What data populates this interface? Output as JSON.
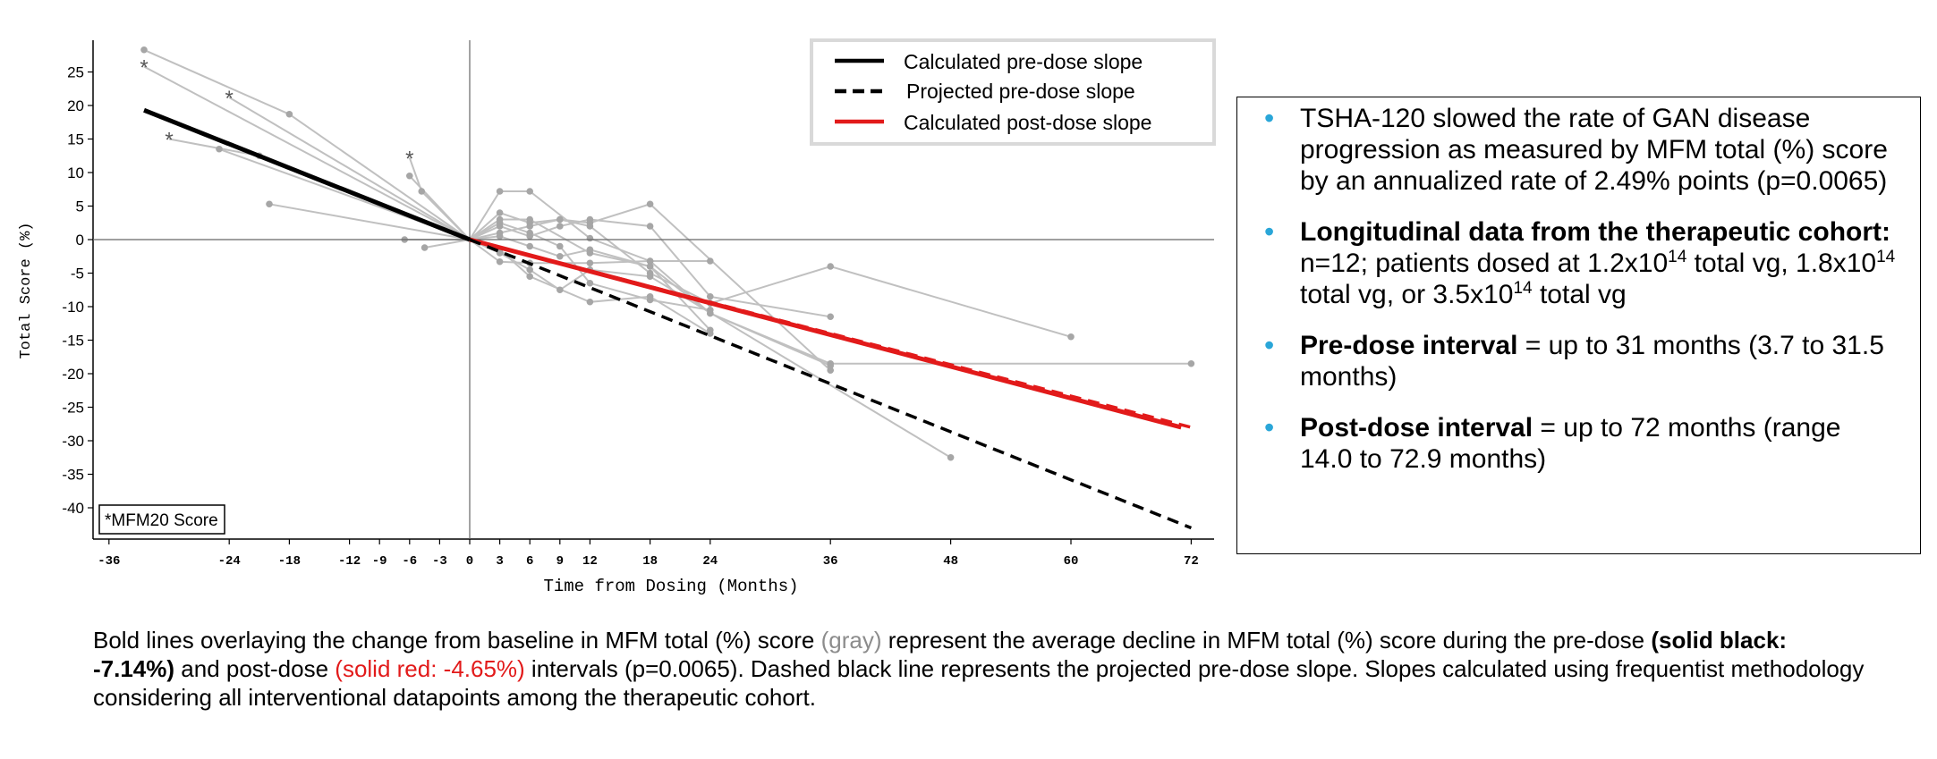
{
  "chart_data": {
    "type": "line",
    "xlabel": "Time from Dosing (Months)",
    "ylabel": "Total Score (%)",
    "xlim": [
      -36,
      73
    ],
    "ylim": [
      -45,
      30
    ],
    "x_ticks": [
      -36,
      -24,
      -18,
      -12,
      -9,
      -6,
      -3,
      0,
      3,
      6,
      9,
      12,
      18,
      24,
      36,
      48,
      60,
      72
    ],
    "y_ticks": [
      25,
      20,
      15,
      10,
      5,
      0,
      -5,
      -10,
      -15,
      -20,
      -25,
      -30,
      -35,
      -40
    ],
    "annotation": "*MFM20 Score",
    "legend_position": "top-right",
    "legend": [
      {
        "label": "Calculated pre-dose slope",
        "color": "#000000",
        "style": "solid"
      },
      {
        "label": "Projected pre-dose slope",
        "color": "#000000",
        "style": "dashed"
      },
      {
        "label": "Calculated post-dose slope",
        "color": "#e21a1a",
        "style": "solid"
      }
    ],
    "bold_lines": [
      {
        "name": "Calculated pre-dose slope",
        "color": "#000000",
        "style": "solid",
        "points": [
          [
            -32.5,
            19.3
          ],
          [
            0,
            0
          ]
        ]
      },
      {
        "name": "Projected pre-dose slope",
        "color": "#000000",
        "style": "dashed",
        "points": [
          [
            0,
            0
          ],
          [
            72,
            -43
          ]
        ]
      },
      {
        "name": "Calculated post-dose slope",
        "color": "#e21a1a",
        "style": "solid",
        "points": [
          [
            0,
            0
          ],
          [
            71,
            -28
          ]
        ]
      },
      {
        "name": "Projected post-dose slope",
        "color": "#e21a1a",
        "style": "dashed",
        "points": [
          [
            0,
            0
          ],
          [
            72,
            -28
          ]
        ]
      }
    ],
    "series": [
      {
        "points": [
          [
            -32.5,
            28.3
          ],
          [
            -18,
            18.7
          ],
          [
            0,
            0
          ],
          [
            3,
            7.2
          ],
          [
            6,
            7.2
          ],
          [
            12,
            0.2
          ],
          [
            18,
            -3.2
          ],
          [
            24,
            -3.2
          ]
        ],
        "marker": "dot"
      },
      {
        "points": [
          [
            -32.5,
            25.8
          ],
          [
            0,
            0
          ],
          [
            3,
            4
          ],
          [
            6,
            2.5
          ],
          [
            9,
            3
          ],
          [
            12,
            2
          ],
          [
            18,
            -5
          ],
          [
            24,
            -9.5
          ],
          [
            36,
            -4
          ],
          [
            60,
            -14.5
          ]
        ],
        "marker": "star"
      },
      {
        "points": [
          [
            -24,
            21.2
          ],
          [
            0,
            0
          ],
          [
            3,
            3
          ],
          [
            6,
            3
          ],
          [
            12,
            -2
          ],
          [
            18,
            -4
          ],
          [
            24,
            -11
          ],
          [
            36,
            -18.5
          ],
          [
            72,
            -18.5
          ]
        ],
        "marker": "star"
      },
      {
        "points": [
          [
            -30,
            15
          ],
          [
            -21,
            12.5
          ],
          [
            0,
            0
          ],
          [
            3,
            2
          ],
          [
            6,
            0.5
          ],
          [
            9,
            2
          ],
          [
            12,
            3
          ],
          [
            18,
            2
          ],
          [
            24,
            -8.5
          ],
          [
            36,
            -11.5
          ]
        ],
        "marker": "star"
      },
      {
        "points": [
          [
            -25,
            13.5
          ],
          [
            0,
            0
          ],
          [
            3,
            1
          ],
          [
            6,
            2
          ],
          [
            9,
            3
          ],
          [
            12,
            2.5
          ],
          [
            18,
            5.3
          ],
          [
            36,
            -19.5
          ]
        ],
        "marker": "dot"
      },
      {
        "points": [
          [
            -20,
            5.3
          ],
          [
            0,
            0
          ],
          [
            3,
            -1.5
          ],
          [
            6,
            -5.5
          ],
          [
            12,
            -9.3
          ],
          [
            18,
            -8.5
          ],
          [
            24,
            -14
          ]
        ],
        "marker": "dot"
      },
      {
        "points": [
          [
            -6,
            12.2
          ],
          [
            -4.8,
            7.2
          ],
          [
            0,
            0
          ],
          [
            3,
            -2
          ],
          [
            6,
            -4.5
          ],
          [
            9,
            -7.5
          ],
          [
            12,
            -4.5
          ],
          [
            18,
            -5.5
          ],
          [
            48,
            -32.5
          ]
        ],
        "marker": "star"
      },
      {
        "points": [
          [
            -6,
            9.5
          ],
          [
            0,
            0
          ],
          [
            3,
            -3.3
          ],
          [
            6,
            -3.5
          ],
          [
            12,
            -3.5
          ],
          [
            18,
            -3.2
          ],
          [
            24,
            -11
          ],
          [
            36,
            -18.8
          ]
        ],
        "marker": "dot"
      },
      {
        "points": [
          [
            -6.5,
            0
          ],
          [
            0,
            0
          ],
          [
            3,
            2.5
          ],
          [
            6,
            1
          ],
          [
            9,
            -1
          ],
          [
            12,
            -6.5
          ],
          [
            18,
            -9
          ],
          [
            24,
            -10.5
          ]
        ],
        "marker": "dot"
      },
      {
        "points": [
          [
            -4.5,
            -1.2
          ],
          [
            0,
            0
          ],
          [
            3,
            0.5
          ],
          [
            6,
            -1
          ],
          [
            9,
            -2.5
          ],
          [
            12,
            -1.5
          ],
          [
            18,
            -4
          ],
          [
            24,
            -13.5
          ]
        ],
        "marker": "dot"
      }
    ]
  },
  "bullets": {
    "b1": {
      "text": "TSHA-120 slowed the rate of GAN disease progression as measured by MFM total (%) score by an annualized rate of 2.49% points (p=0.0065)"
    },
    "b2": {
      "bold": "Longitudinal data from the therapeutic cohort:",
      "t1": " n=12; patients dosed at 1.2x10",
      "s1": "14",
      "t2": " total vg, 1.8x10",
      "s2": "14",
      "t3": " total vg, or 3.5x10",
      "s3": "14",
      "t4": " total vg"
    },
    "b3": {
      "bold": "Pre-dose interval",
      "rest": " = up to 31 months (3.7 to 31.5 months)"
    },
    "b4": {
      "bold": "Post-dose interval",
      "rest": " = up to 72 months (range 14.0 to 72.9 months)"
    }
  },
  "caption": {
    "p1": "Bold lines overlaying the change from baseline in MFM total (%) score ",
    "gray": "(gray)",
    "p2": " represent the average decline in MFM total (%) score during the pre-dose ",
    "bold1": "(solid black: -7.14%)",
    "p3": " and post-dose ",
    "red": "(solid red: -4.65%)",
    "p4": " intervals (p=0.0065). Dashed black line represents the projected pre-dose slope. Slopes calculated using frequentist methodology considering all interventional datapoints among the therapeutic cohort."
  },
  "colors": {
    "individual_lines": "#c0c0c0",
    "markers": "#a6a6a6",
    "pre_dose": "#000000",
    "post_dose": "#e21a1a",
    "bullet": "#2aa6d8"
  }
}
